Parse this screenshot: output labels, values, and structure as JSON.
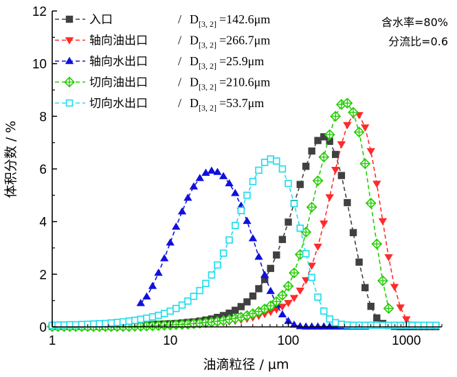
{
  "chart_data": {
    "type": "scatter",
    "title": "",
    "xlabel": "油滴粒径 / μm",
    "ylabel": "体积分数 / %",
    "xscale": "log",
    "xlim": [
      1,
      2000
    ],
    "ylim": [
      0,
      12
    ],
    "xticks": [
      1,
      10,
      100,
      1000
    ],
    "xtick_labels": [
      "1",
      "10",
      "100",
      "1000"
    ],
    "yticks": [
      0,
      2,
      4,
      6,
      8,
      10,
      12
    ],
    "ytick_labels": [
      "0",
      "2",
      "4",
      "6",
      "8",
      "10",
      "12"
    ],
    "legend_position": "top-left",
    "annotations": [
      "含水率=80%",
      "分流比=0.6"
    ],
    "series": [
      {
        "name": "入口",
        "d_label": "D",
        "d_sub": "[3, 2]",
        "d_value": "=142.6μm",
        "color": "#404040",
        "marker": "square",
        "x": [
          1,
          1.12,
          1.26,
          1.41,
          1.58,
          1.78,
          2,
          2.24,
          2.51,
          2.82,
          3.16,
          3.55,
          3.98,
          4.47,
          5.01,
          5.62,
          6.31,
          7.08,
          7.94,
          8.91,
          10,
          11.2,
          12.6,
          14.1,
          15.8,
          17.8,
          20,
          22.4,
          25.1,
          28.2,
          31.6,
          35.5,
          39.8,
          44.7,
          50.1,
          56.2,
          63.1,
          70.8,
          79.4,
          89.1,
          100,
          112,
          126,
          141,
          158,
          178,
          200,
          224,
          251,
          282,
          316,
          355,
          398,
          447,
          501,
          562,
          631,
          708,
          794,
          891,
          1000,
          1120,
          1260,
          1410,
          1580,
          1780
        ],
        "y": [
          0.02,
          0.02,
          0.02,
          0.02,
          0.02,
          0.02,
          0.02,
          0.02,
          0.02,
          0.02,
          0.02,
          0.03,
          0.04,
          0.05,
          0.06,
          0.07,
          0.08,
          0.09,
          0.1,
          0.11,
          0.12,
          0.13,
          0.15,
          0.17,
          0.19,
          0.22,
          0.26,
          0.3,
          0.36,
          0.43,
          0.52,
          0.63,
          0.77,
          0.95,
          1.17,
          1.45,
          1.8,
          2.22,
          2.73,
          3.32,
          3.98,
          4.69,
          5.41,
          6.1,
          6.68,
          7.08,
          7.22,
          7.05,
          6.55,
          5.75,
          4.72,
          3.58,
          2.46,
          1.49,
          0.78,
          0.34,
          0.13,
          0.05,
          0.02,
          0.01,
          0.01,
          0.01,
          0.01,
          0.01,
          0.01,
          0.01
        ]
      },
      {
        "name": "轴向油出口",
        "d_label": "D",
        "d_sub": "[3, 2]",
        "d_value": "=266.7μm",
        "color": "#ff2a2a",
        "marker": "triangle-down",
        "x": [
          1,
          1.12,
          1.26,
          1.41,
          1.58,
          1.78,
          2,
          2.24,
          2.51,
          2.82,
          3.16,
          3.55,
          3.98,
          4.47,
          5.01,
          5.62,
          6.31,
          7.08,
          7.94,
          8.91,
          10,
          11.2,
          12.6,
          14.1,
          15.8,
          17.8,
          20,
          22.4,
          25.1,
          28.2,
          31.6,
          35.5,
          39.8,
          44.7,
          50.1,
          56.2,
          63.1,
          70.8,
          79.4,
          89.1,
          100,
          112,
          126,
          141,
          158,
          178,
          200,
          224,
          251,
          282,
          316,
          355,
          398,
          447,
          501,
          562,
          631,
          708,
          794,
          891,
          1000,
          1120,
          1260,
          1410,
          1580,
          1780
        ],
        "y": [
          0.01,
          0.01,
          0.01,
          0.01,
          0.01,
          0.01,
          0.01,
          0.01,
          0.01,
          0.01,
          0.01,
          0.01,
          0.01,
          0.01,
          0.01,
          0.01,
          0.02,
          0.02,
          0.03,
          0.04,
          0.05,
          0.06,
          0.07,
          0.08,
          0.09,
          0.1,
          0.11,
          0.13,
          0.15,
          0.17,
          0.2,
          0.23,
          0.27,
          0.31,
          0.36,
          0.42,
          0.49,
          0.57,
          0.66,
          0.77,
          0.91,
          1.1,
          1.38,
          1.78,
          2.33,
          3.05,
          3.93,
          4.93,
          5.97,
          6.94,
          7.67,
          8.06,
          8.05,
          7.58,
          6.68,
          5.44,
          4.02,
          2.65,
          1.52,
          0.74,
          0.29,
          0.09,
          0.03,
          0.02,
          0.02,
          0.02
        ]
      },
      {
        "name": "轴向水出口",
        "d_label": "D",
        "d_sub": "[3, 2]",
        "d_value": "=25.9μm",
        "color": "#1010dd",
        "marker": "triangle-up",
        "x": [
          5.62,
          6.31,
          7.08,
          7.94,
          8.91,
          10,
          11.2,
          12.6,
          14.1,
          15.8,
          17.8,
          20,
          22.4,
          25.1,
          28.2,
          31.6,
          35.5,
          39.8,
          44.7,
          50.1,
          56.2,
          63.1,
          70.8,
          79.4,
          89.1,
          100,
          112,
          126,
          141,
          158,
          178,
          200,
          224,
          251,
          282,
          316,
          355,
          398,
          447
        ],
        "y": [
          0.9,
          1.15,
          1.55,
          2.05,
          2.6,
          3.2,
          3.8,
          4.38,
          4.9,
          5.33,
          5.65,
          5.85,
          5.93,
          5.88,
          5.72,
          5.45,
          5.08,
          4.6,
          4.02,
          3.36,
          2.66,
          1.97,
          1.36,
          0.85,
          0.47,
          0.22,
          0.08,
          0.02,
          0.01,
          0.01,
          0.01,
          0.01,
          0.01,
          0.01,
          0.01,
          0.01,
          0.01,
          0.01,
          0.01
        ]
      },
      {
        "name": "切向油出口",
        "d_label": "D",
        "d_sub": "[3, 2]",
        "d_value": "=210.6μm",
        "color": "#22cc00",
        "marker": "diamond-cross",
        "x": [
          1,
          1.12,
          1.26,
          1.41,
          1.58,
          1.78,
          2,
          2.24,
          2.51,
          2.82,
          3.16,
          3.55,
          3.98,
          4.47,
          5.01,
          5.62,
          6.31,
          7.08,
          7.94,
          8.91,
          10,
          11.2,
          12.6,
          14.1,
          15.8,
          17.8,
          20,
          22.4,
          25.1,
          28.2,
          31.6,
          35.5,
          39.8,
          44.7,
          50.1,
          56.2,
          63.1,
          70.8,
          79.4,
          89.1,
          100,
          112,
          126,
          141,
          158,
          178,
          200,
          224,
          251,
          282,
          316,
          355,
          398,
          447,
          501,
          562,
          631,
          708
        ],
        "y": [
          0.01,
          0.01,
          0.01,
          0.01,
          0.01,
          0.01,
          0.01,
          0.01,
          0.01,
          0.01,
          0.01,
          0.01,
          0.01,
          0.01,
          0.02,
          0.02,
          0.03,
          0.04,
          0.05,
          0.06,
          0.07,
          0.08,
          0.09,
          0.1,
          0.12,
          0.14,
          0.16,
          0.18,
          0.21,
          0.24,
          0.28,
          0.32,
          0.37,
          0.43,
          0.5,
          0.58,
          0.68,
          0.8,
          0.96,
          1.2,
          1.55,
          2.05,
          2.75,
          3.6,
          4.55,
          5.55,
          6.45,
          7.3,
          8,
          8.45,
          8.5,
          8.15,
          7.4,
          6.2,
          4.7,
          3.15,
          1.75,
          0.7
        ]
      },
      {
        "name": "切向水出口",
        "d_label": "D",
        "d_sub": "[3, 2]",
        "d_value": "=53.7μm",
        "color": "#22ddee",
        "marker": "square-open",
        "x": [
          1,
          1.12,
          1.26,
          1.41,
          1.58,
          1.78,
          2,
          2.24,
          2.51,
          2.82,
          3.16,
          3.55,
          3.98,
          4.47,
          5.01,
          5.62,
          6.31,
          7.08,
          7.94,
          8.91,
          10,
          11.2,
          12.6,
          14.1,
          15.8,
          17.8,
          20,
          22.4,
          25.1,
          28.2,
          31.6,
          35.5,
          39.8,
          44.7,
          50.1,
          56.2,
          63.1,
          70.8,
          79.4,
          89.1,
          100,
          112,
          126,
          141,
          158,
          178,
          200,
          224,
          251,
          282,
          316,
          355,
          398,
          447,
          501,
          562,
          631,
          708,
          794,
          891,
          1000,
          1120,
          1260,
          1410,
          1580,
          1780
        ],
        "y": [
          0.06,
          0.07,
          0.07,
          0.08,
          0.08,
          0.09,
          0.1,
          0.11,
          0.12,
          0.13,
          0.15,
          0.17,
          0.19,
          0.22,
          0.25,
          0.29,
          0.33,
          0.38,
          0.44,
          0.51,
          0.6,
          0.7,
          0.83,
          0.98,
          1.16,
          1.38,
          1.65,
          1.97,
          2.35,
          2.8,
          3.3,
          3.85,
          4.42,
          5,
          5.52,
          5.95,
          6.25,
          6.38,
          6.3,
          6.0,
          5.45,
          4.68,
          3.75,
          2.78,
          1.88,
          1.13,
          0.6,
          0.3,
          0.16,
          0.1,
          0.07,
          0.06,
          0.06,
          0.06,
          0.06,
          0.06,
          0.06,
          0.06,
          0.06,
          0.06,
          0.06,
          0.06,
          0.06,
          0.06,
          0.06,
          0.06
        ]
      }
    ]
  }
}
